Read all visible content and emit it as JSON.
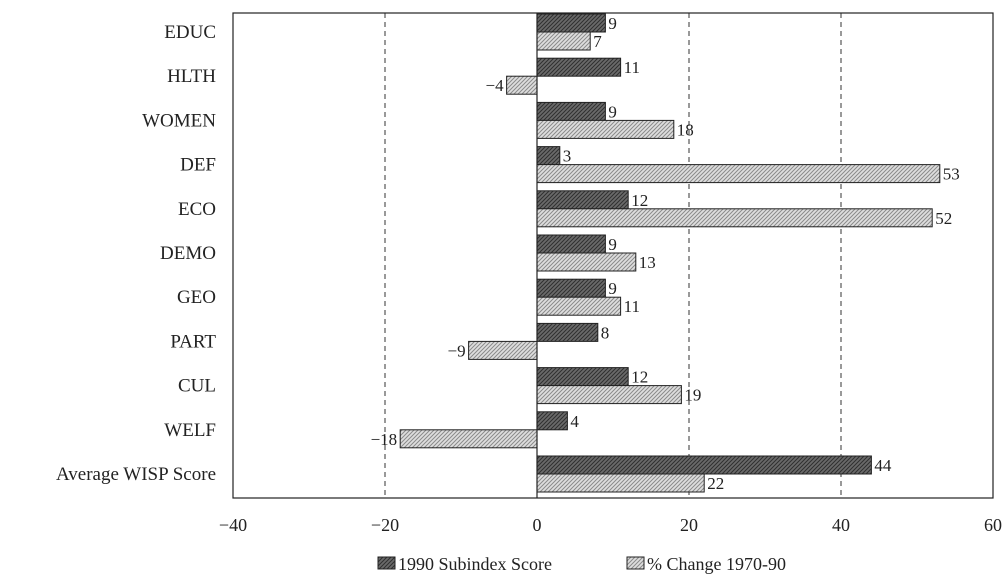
{
  "chart_data": {
    "type": "bar",
    "orientation": "horizontal",
    "categories": [
      "EDUC",
      "HLTH",
      "WOMEN",
      "DEF",
      "ECO",
      "DEMO",
      "GEO",
      "PART",
      "CUL",
      "WELF",
      "Average WISP Score"
    ],
    "series": [
      {
        "name": "1990 Subindex Score",
        "values": [
          9,
          11,
          9,
          3,
          12,
          9,
          9,
          8,
          12,
          4,
          44
        ],
        "color": "#555555"
      },
      {
        "name": "% Change 1970-90",
        "values": [
          7,
          -4,
          18,
          53,
          52,
          13,
          11,
          -9,
          19,
          -18,
          22
        ],
        "color": "#c8c8c8"
      }
    ],
    "value_labels": [
      [
        "9",
        "11",
        "9",
        "3",
        "12",
        "9",
        "9",
        "8",
        "12",
        "4",
        "44"
      ],
      [
        "7",
        "−4",
        "18",
        "53",
        "52",
        "13",
        "11",
        "−9",
        "19",
        "−18",
        "22"
      ]
    ],
    "xlim": [
      -40,
      60
    ],
    "xticks": [
      -40,
      -20,
      0,
      20,
      40,
      60
    ],
    "xtick_labels": [
      "−40",
      "−20",
      "0",
      "20",
      "40",
      "60"
    ],
    "gridlines": "dashed at -20, 20, 40",
    "legend_position": "bottom"
  }
}
